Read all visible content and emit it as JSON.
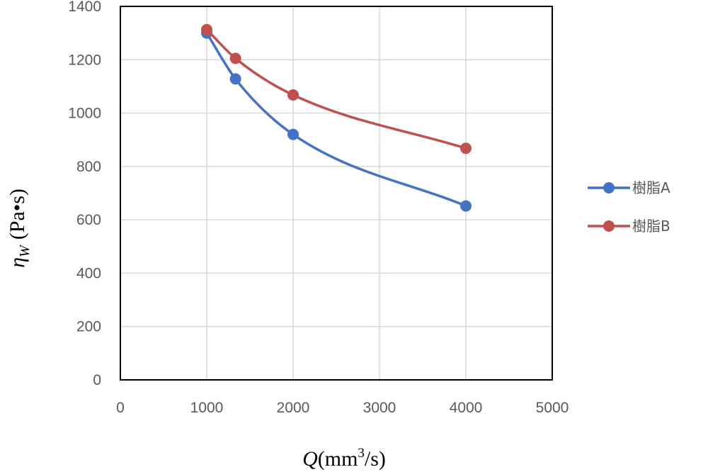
{
  "chart_data": {
    "type": "line",
    "smooth": true,
    "xlim": [
      0,
      5000
    ],
    "ylim": [
      0,
      1400
    ],
    "xticks": [
      "0",
      "1000",
      "2000",
      "3000",
      "4000",
      "5000"
    ],
    "yticks": [
      "0",
      "200",
      "400",
      "600",
      "800",
      "1000",
      "1200",
      "1400"
    ],
    "grid": true,
    "legend_position": "right",
    "xlabel": {
      "symbol": "Q",
      "unit_open": "(mm",
      "unit_sup": "3",
      "unit_close": "/s)"
    },
    "ylabel": {
      "symbol": "η",
      "subscript": "W",
      "unit": "(Pa•s)"
    },
    "series": [
      {
        "name": "樹脂A",
        "color": "#4472c4",
        "points": [
          [
            1000,
            1300
          ],
          [
            1333,
            1128
          ],
          [
            2000,
            920
          ],
          [
            4000,
            652
          ]
        ]
      },
      {
        "name": "樹脂B",
        "color": "#c0504d",
        "points": [
          [
            1000,
            1313
          ],
          [
            1333,
            1205
          ],
          [
            2000,
            1068
          ],
          [
            4000,
            868
          ]
        ]
      }
    ]
  }
}
